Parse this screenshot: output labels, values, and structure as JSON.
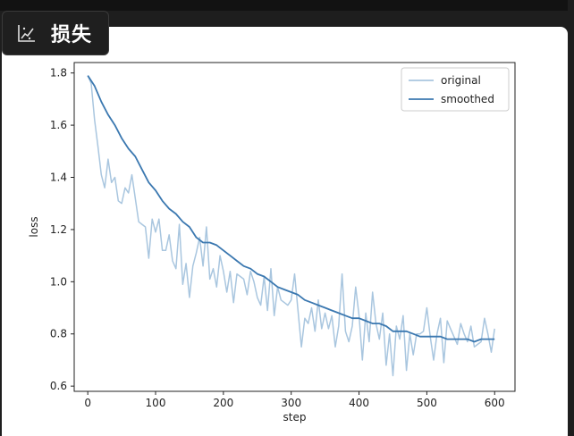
{
  "badge": {
    "title": "损失",
    "icon": "chart-icon"
  },
  "chart_data": {
    "type": "line",
    "title": "",
    "xlabel": "step",
    "ylabel": "loss",
    "xlim": [
      -20,
      630
    ],
    "ylim": [
      0.58,
      1.84
    ],
    "xticks": [
      0,
      100,
      200,
      300,
      400,
      500,
      600
    ],
    "yticks": [
      0.6,
      0.8,
      1.0,
      1.2,
      1.4,
      1.6,
      1.8
    ],
    "xtick_labels": [
      "0",
      "100",
      "200",
      "300",
      "400",
      "500",
      "600"
    ],
    "ytick_labels": [
      "0.6",
      "0.8",
      "1.0",
      "1.2",
      "1.4",
      "1.6",
      "1.8"
    ],
    "grid": false,
    "legend": "top-right",
    "series": [
      {
        "name": "original",
        "color": "#a9c6df",
        "x": [
          0,
          5,
          10,
          15,
          20,
          25,
          30,
          35,
          40,
          45,
          50,
          55,
          60,
          65,
          70,
          75,
          80,
          85,
          90,
          95,
          100,
          105,
          110,
          115,
          120,
          125,
          130,
          135,
          140,
          145,
          150,
          155,
          160,
          165,
          170,
          175,
          180,
          185,
          190,
          195,
          200,
          205,
          210,
          215,
          220,
          225,
          230,
          235,
          240,
          245,
          250,
          255,
          260,
          265,
          270,
          275,
          280,
          285,
          290,
          295,
          300,
          305,
          310,
          315,
          320,
          325,
          330,
          335,
          340,
          345,
          350,
          355,
          360,
          365,
          370,
          375,
          380,
          385,
          390,
          395,
          400,
          405,
          410,
          415,
          420,
          425,
          430,
          435,
          440,
          445,
          450,
          455,
          460,
          465,
          470,
          475,
          480,
          485,
          490,
          495,
          500,
          505,
          510,
          515,
          520,
          525,
          530,
          535,
          540,
          545,
          550,
          555,
          560,
          565,
          570,
          575,
          580,
          585,
          590,
          595,
          600
        ],
        "values": [
          1.79,
          1.76,
          1.62,
          1.52,
          1.41,
          1.36,
          1.47,
          1.38,
          1.4,
          1.31,
          1.3,
          1.36,
          1.34,
          1.41,
          1.32,
          1.23,
          1.22,
          1.21,
          1.09,
          1.24,
          1.19,
          1.24,
          1.12,
          1.12,
          1.18,
          1.08,
          1.05,
          1.22,
          0.99,
          1.07,
          0.94,
          1.06,
          1.11,
          1.17,
          1.06,
          1.21,
          1.01,
          1.05,
          0.98,
          1.1,
          1.04,
          0.96,
          1.04,
          0.92,
          1.03,
          1.02,
          1.01,
          0.95,
          1.04,
          1.0,
          0.94,
          0.91,
          1.02,
          0.89,
          1.05,
          0.87,
          0.98,
          0.93,
          0.92,
          0.91,
          0.93,
          1.03,
          0.89,
          0.75,
          0.86,
          0.84,
          0.9,
          0.81,
          0.93,
          0.82,
          0.88,
          0.82,
          0.87,
          0.75,
          0.83,
          1.03,
          0.81,
          0.77,
          0.83,
          0.98,
          0.87,
          0.7,
          0.88,
          0.77,
          0.96,
          0.84,
          0.78,
          0.88,
          0.68,
          0.8,
          0.64,
          0.83,
          0.78,
          0.87,
          0.66,
          0.8,
          0.72,
          0.8,
          0.8,
          0.81,
          0.9,
          0.79,
          0.7,
          0.8,
          0.86,
          0.69,
          0.85,
          0.82,
          0.79,
          0.76,
          0.84,
          0.8,
          0.77,
          0.83,
          0.75,
          0.76,
          0.77,
          0.86,
          0.8,
          0.73,
          0.82
        ]
      },
      {
        "name": "smoothed",
        "color": "#3b78b0",
        "x": [
          0,
          10,
          20,
          30,
          40,
          50,
          60,
          70,
          80,
          90,
          100,
          110,
          120,
          130,
          140,
          150,
          160,
          170,
          180,
          190,
          200,
          210,
          220,
          230,
          240,
          250,
          260,
          270,
          280,
          290,
          300,
          310,
          320,
          330,
          340,
          350,
          360,
          370,
          380,
          390,
          400,
          410,
          420,
          430,
          440,
          450,
          460,
          470,
          480,
          490,
          500,
          510,
          520,
          530,
          540,
          550,
          560,
          570,
          580,
          590,
          600
        ],
        "values": [
          1.79,
          1.75,
          1.69,
          1.64,
          1.6,
          1.55,
          1.51,
          1.48,
          1.43,
          1.38,
          1.35,
          1.31,
          1.28,
          1.26,
          1.23,
          1.21,
          1.17,
          1.15,
          1.15,
          1.14,
          1.12,
          1.1,
          1.08,
          1.06,
          1.05,
          1.03,
          1.02,
          1.0,
          0.98,
          0.97,
          0.96,
          0.95,
          0.93,
          0.92,
          0.91,
          0.9,
          0.89,
          0.88,
          0.87,
          0.86,
          0.86,
          0.85,
          0.84,
          0.84,
          0.83,
          0.81,
          0.81,
          0.81,
          0.8,
          0.79,
          0.79,
          0.79,
          0.79,
          0.78,
          0.78,
          0.78,
          0.78,
          0.77,
          0.78,
          0.78,
          0.78
        ]
      }
    ]
  }
}
